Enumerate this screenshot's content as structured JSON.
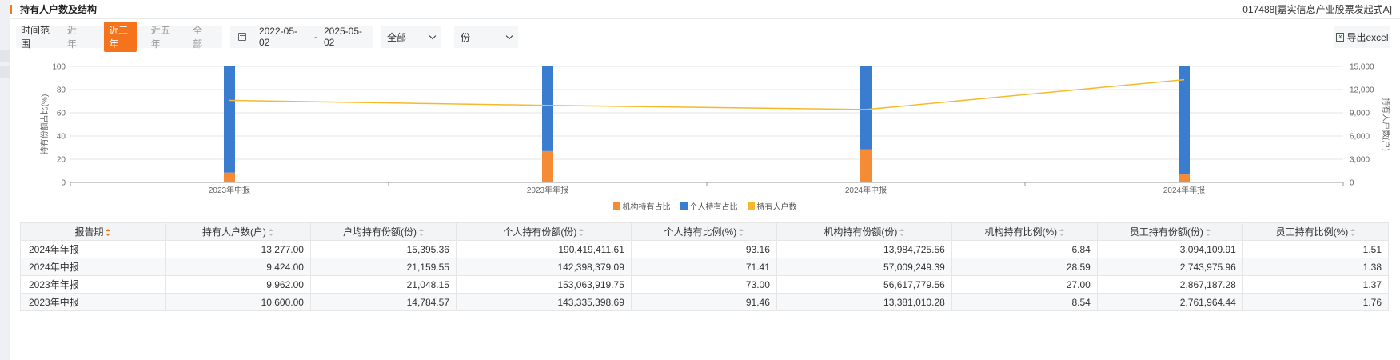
{
  "header": {
    "title": "持有人户数及结构",
    "fund": "017488[嘉实信息产业股票发起式A]"
  },
  "toolbar": {
    "range_label": "时间范围",
    "ranges": [
      {
        "label": "近一年",
        "active": false
      },
      {
        "label": "近三年",
        "active": true
      },
      {
        "label": "近五年",
        "active": false
      },
      {
        "label": "全部",
        "active": false
      }
    ],
    "date_start": "2022-05-02",
    "date_sep": "-",
    "date_end": "2025-05-02",
    "select_type": "全部",
    "select_unit": "份",
    "export_label": "导出excel"
  },
  "chart_data": {
    "type": "bar",
    "categories": [
      "2023年中报",
      "2023年年报",
      "2024年中报",
      "2024年年报"
    ],
    "series": [
      {
        "name": "机构持有占比",
        "kind": "bar",
        "color": "#f68b35",
        "values": [
          8.54,
          27.0,
          28.59,
          6.84
        ]
      },
      {
        "name": "个人持有占比",
        "kind": "bar",
        "color": "#3a7ccf",
        "values": [
          91.46,
          73.0,
          71.41,
          93.16
        ]
      },
      {
        "name": "持有人户数",
        "kind": "line",
        "axis": "right",
        "color": "#f6b92b",
        "values": [
          10600,
          9962,
          9424,
          13277
        ]
      }
    ],
    "ylabel": "持有份额占比(%)",
    "ylabel_right": "持有人户数(户)",
    "ylim": [
      0,
      100
    ],
    "ylim_right": [
      0,
      15000
    ],
    "yticks": [
      "0",
      "20",
      "40",
      "60",
      "80",
      "100"
    ],
    "yticks_right": [
      "0",
      "3,000",
      "6,000",
      "9,000",
      "12,000",
      "15,000"
    ],
    "legend_position": "bottom",
    "grid": true
  },
  "table": {
    "columns": [
      "报告期",
      "持有人户数(户)",
      "户均持有份额(份)",
      "个人持有份额(份)",
      "个人持有比例(%)",
      "机构持有份额(份)",
      "机构持有比例(%)",
      "员工持有份额(份)",
      "员工持有比例(%)"
    ],
    "rows": [
      [
        "2024年年报",
        "13,277.00",
        "15,395.36",
        "190,419,411.61",
        "93.16",
        "13,984,725.56",
        "6.84",
        "3,094,109.91",
        "1.51"
      ],
      [
        "2024年中报",
        "9,424.00",
        "21,159.55",
        "142,398,379.09",
        "71.41",
        "57,009,249.39",
        "28.59",
        "2,743,975.96",
        "1.38"
      ],
      [
        "2023年年报",
        "9,962.00",
        "21,048.15",
        "153,063,919.75",
        "73.00",
        "56,617,779.56",
        "27.00",
        "2,867,187.28",
        "1.37"
      ],
      [
        "2023年中报",
        "10,600.00",
        "14,784.57",
        "143,335,398.69",
        "91.46",
        "13,381,010.28",
        "8.54",
        "2,761,964.44",
        "1.76"
      ]
    ]
  }
}
